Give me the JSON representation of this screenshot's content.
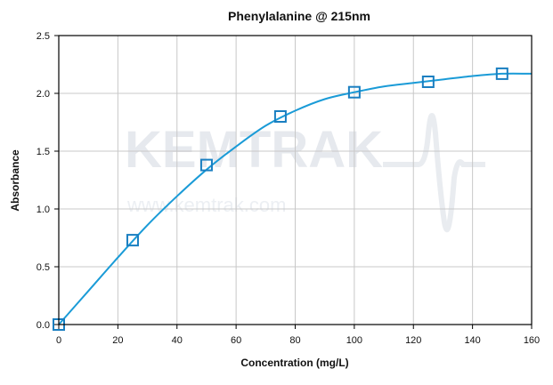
{
  "chart_data": {
    "type": "scatter",
    "title": "Phenylalanine @ 215nm",
    "xlabel": "Concentration (mg/L)",
    "ylabel": "Absorbance",
    "xlim": [
      0,
      160
    ],
    "ylim": [
      0,
      2.5
    ],
    "x_ticks": [
      "0",
      "20",
      "40",
      "60",
      "80",
      "100",
      "120",
      "140",
      "160"
    ],
    "y_ticks": [
      "0.0",
      "0.5",
      "1.0",
      "1.5",
      "2.0",
      "2.5"
    ],
    "grid": true,
    "legend": "none",
    "series": [
      {
        "marker": "open-square",
        "color": "#1a7fc1",
        "x": [
          0,
          25,
          50,
          75,
          100,
          125,
          150
        ],
        "y": [
          0.0,
          0.73,
          1.38,
          1.8,
          2.01,
          2.1,
          2.17
        ]
      }
    ],
    "fit_curve": {
      "color": "#1a9bd7",
      "x": [
        0,
        10,
        20,
        30,
        40,
        50,
        60,
        70,
        80,
        90,
        100,
        110,
        120,
        130,
        140,
        150,
        160
      ],
      "y": [
        0.0,
        0.29,
        0.58,
        0.86,
        1.11,
        1.34,
        1.54,
        1.72,
        1.85,
        1.95,
        2.01,
        2.06,
        2.09,
        2.12,
        2.15,
        2.17,
        2.17
      ]
    }
  },
  "watermark": {
    "brand": "KEMTRAK",
    "url": "www.kemtrak.com"
  }
}
